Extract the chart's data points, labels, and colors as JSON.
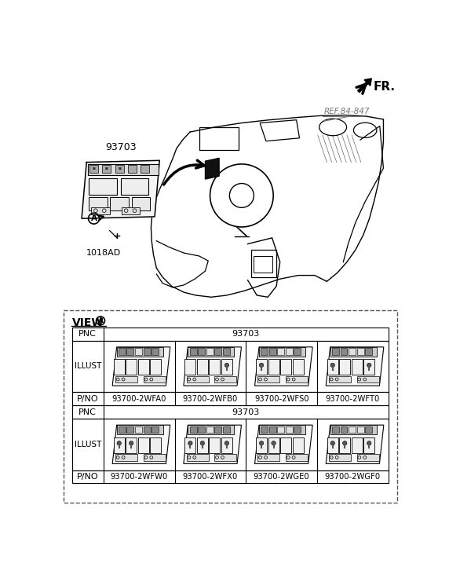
{
  "bg_color": "#ffffff",
  "title_fr": "FR.",
  "ref_label": "REF.84-847",
  "part_label_93703": "93703",
  "part_label_1018AD": "1018AD",
  "view_label": "VIEW",
  "pnc_label": "PNC",
  "illust_label": "ILLUST",
  "pno_label": "P/NO",
  "pnc_value": "93703",
  "row1_parts": [
    "93700-2WFA0",
    "93700-2WFB0",
    "93700-2WFS0",
    "93700-2WFT0"
  ],
  "row2_parts": [
    "93700-2WFW0",
    "93700-2WFX0",
    "93700-2WGE0",
    "93700-2WGF0"
  ],
  "lc": "#000000",
  "gc": "#777777",
  "dashed_color": "#555555",
  "row1_configs": [
    {
      "top_icons": [
        1,
        1,
        0,
        1,
        1
      ],
      "btns": [
        0,
        0,
        0,
        0
      ]
    },
    {
      "top_icons": [
        1,
        1,
        0,
        1,
        1
      ],
      "btns": [
        0,
        0,
        0,
        1
      ]
    },
    {
      "top_icons": [
        1,
        1,
        0,
        0,
        1
      ],
      "btns": [
        1,
        0,
        0,
        0
      ]
    },
    {
      "top_icons": [
        1,
        1,
        0,
        0,
        1
      ],
      "btns": [
        1,
        0,
        0,
        1
      ]
    }
  ],
  "row2_configs": [
    {
      "top_icons": [
        1,
        1,
        0,
        1,
        1
      ],
      "btns": [
        1,
        1,
        0,
        0
      ]
    },
    {
      "top_icons": [
        1,
        1,
        0,
        1,
        1
      ],
      "btns": [
        1,
        1,
        0,
        1
      ]
    },
    {
      "top_icons": [
        1,
        1,
        0,
        0,
        1
      ],
      "btns": [
        1,
        1,
        0,
        0
      ]
    },
    {
      "top_icons": [
        1,
        1,
        0,
        0,
        1
      ],
      "btns": [
        1,
        1,
        0,
        1
      ]
    }
  ]
}
